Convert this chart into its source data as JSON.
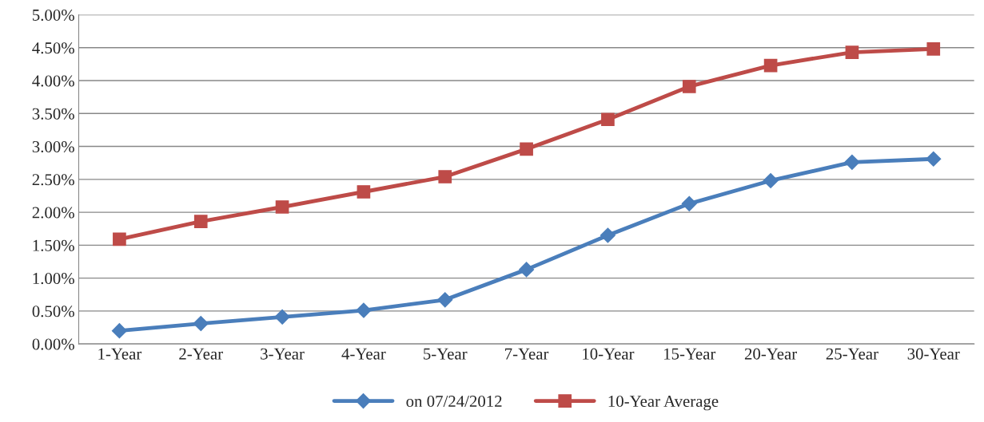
{
  "chart_data": {
    "type": "line",
    "categories": [
      "1-Year",
      "2-Year",
      "3-Year",
      "4-Year",
      "5-Year",
      "7-Year",
      "10-Year",
      "15-Year",
      "20-Year",
      "25-Year",
      "30-Year"
    ],
    "series": [
      {
        "name": "on 07/24/2012",
        "color": "#4a7ebb",
        "marker": "diamond",
        "values": [
          0.2,
          0.31,
          0.41,
          0.51,
          0.67,
          1.13,
          1.65,
          2.13,
          2.48,
          2.76,
          2.81
        ]
      },
      {
        "name": "10-Year Average",
        "color": "#be4b48",
        "marker": "square",
        "values": [
          1.59,
          1.86,
          2.08,
          2.31,
          2.54,
          2.96,
          3.41,
          3.91,
          4.23,
          4.43,
          4.48
        ]
      }
    ],
    "ylim": [
      0,
      5
    ],
    "yticks": [
      {
        "value": 0,
        "label": "0.00%"
      },
      {
        "value": 0.5,
        "label": "0.50%"
      },
      {
        "value": 1,
        "label": "1.00%"
      },
      {
        "value": 1.5,
        "label": "1.50%"
      },
      {
        "value": 2,
        "label": "2.00%"
      },
      {
        "value": 2.5,
        "label": "2.50%"
      },
      {
        "value": 3,
        "label": "3.00%"
      },
      {
        "value": 3.5,
        "label": "3.50%"
      },
      {
        "value": 4,
        "label": "4.00%"
      },
      {
        "value": 4.5,
        "label": "4.50%"
      },
      {
        "value": 5,
        "label": "5.00%"
      }
    ],
    "grid": "y",
    "legend": "bottom",
    "line_style": "solid"
  }
}
